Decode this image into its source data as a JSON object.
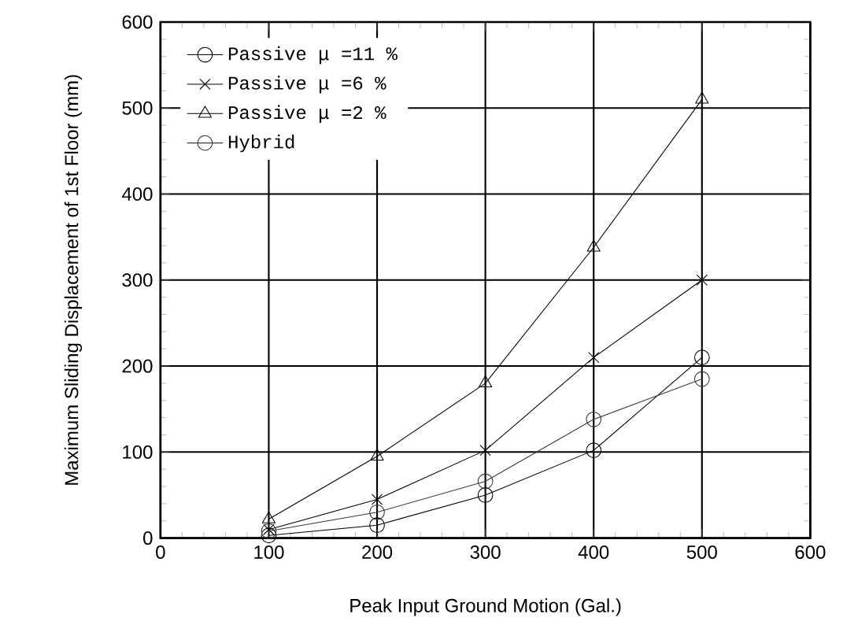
{
  "chart_data": {
    "type": "line",
    "xlabel": "Peak Input Ground Motion (Gal.)",
    "ylabel": "Maximum Sliding Displacement of 1st Floor (mm)",
    "x": [
      100,
      200,
      300,
      400,
      500
    ],
    "series": [
      {
        "name": "Passive  μ =11 %",
        "color": "#000000",
        "marker": "circle",
        "values": [
          3,
          15,
          50,
          102,
          210
        ]
      },
      {
        "name": "Passive  μ =6 %",
        "color": "#000000",
        "marker": "cross",
        "values": [
          10,
          45,
          102,
          210,
          300
        ]
      },
      {
        "name": "Passive  μ =2 %",
        "color": "#000000",
        "marker": "triangle",
        "values": [
          22,
          95,
          180,
          338,
          510
        ]
      },
      {
        "name": "Hybrid",
        "color": "#3a3a3a",
        "marker": "circle",
        "values": [
          8,
          30,
          66,
          138,
          185
        ]
      }
    ],
    "xlim": [
      0,
      600
    ],
    "ylim": [
      0,
      600
    ],
    "xticks": [
      0,
      100,
      200,
      300,
      400,
      500,
      600
    ],
    "yticks": [
      0,
      100,
      200,
      300,
      400,
      500,
      600
    ],
    "grid": true,
    "legend": "top left",
    "line_style": "solid"
  }
}
